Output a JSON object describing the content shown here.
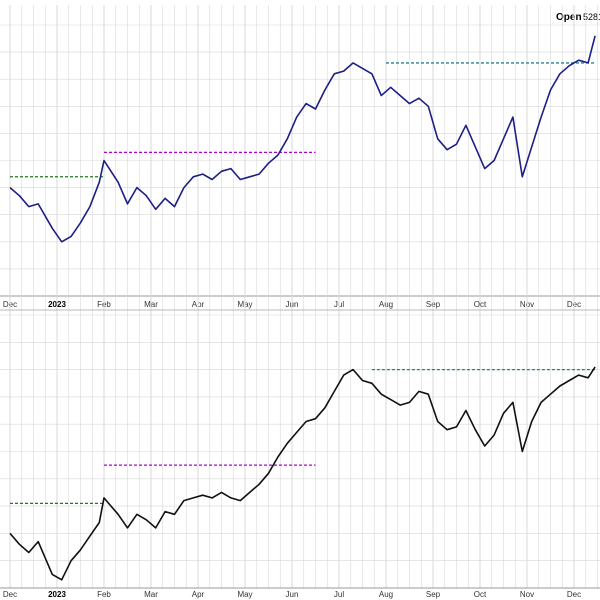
{
  "header": {
    "open_label": "Open",
    "open_value": "5281"
  },
  "colors": {
    "top_series": "#1c1f86",
    "bottom_series": "#111111",
    "grid": "#d8d8d8",
    "divider": "#b8b8b8",
    "ref_green": "#1f7a1f",
    "ref_purple": "#b000d0",
    "ref_teal": "#2a7f8f"
  },
  "chart_data": [
    {
      "type": "line",
      "title": "",
      "x_tick_labels": [
        {
          "label": "Dec",
          "month": 0
        },
        {
          "label": "2023",
          "month": 1,
          "bold": true
        },
        {
          "label": "Feb",
          "month": 2
        },
        {
          "label": "Mar",
          "month": 3
        },
        {
          "label": "Apr",
          "month": 4
        },
        {
          "label": "May",
          "month": 5
        },
        {
          "label": "Jun",
          "month": 6
        },
        {
          "label": "Jul",
          "month": 7
        },
        {
          "label": "Aug",
          "month": 8
        },
        {
          "label": "Sep",
          "month": 9
        },
        {
          "label": "Oct",
          "month": 10
        },
        {
          "label": "Nov",
          "month": 11
        },
        {
          "label": "Dec",
          "month": 12
        }
      ],
      "ylim": [
        0,
        100
      ],
      "grid": true,
      "series": [
        {
          "color_key": "top_series",
          "x": [
            0,
            0.2,
            0.4,
            0.6,
            0.9,
            1.1,
            1.3,
            1.5,
            1.7,
            1.9,
            2.0,
            2.15,
            2.3,
            2.5,
            2.7,
            2.9,
            3.1,
            3.3,
            3.5,
            3.7,
            3.9,
            4.1,
            4.3,
            4.5,
            4.7,
            4.9,
            5.1,
            5.3,
            5.5,
            5.7,
            5.9,
            6.1,
            6.3,
            6.5,
            6.7,
            6.9,
            7.1,
            7.3,
            7.5,
            7.7,
            7.9,
            8.1,
            8.3,
            8.5,
            8.7,
            8.9,
            9.1,
            9.3,
            9.5,
            9.7,
            9.9,
            10.1,
            10.3,
            10.5,
            10.7,
            10.9,
            11.1,
            11.3,
            11.5,
            11.7,
            11.9,
            12.1,
            12.3,
            12.45
          ],
          "y": [
            40,
            37,
            33,
            34,
            25,
            20,
            22,
            27,
            33,
            42,
            50,
            46,
            42,
            34,
            40,
            37,
            32,
            36,
            33,
            40,
            44,
            45,
            43,
            46,
            47,
            43,
            44,
            45,
            49,
            52,
            58,
            66,
            71,
            69,
            76,
            82,
            83,
            86,
            84,
            82,
            74,
            77,
            74,
            71,
            73,
            70,
            58,
            54,
            56,
            63,
            55,
            47,
            50,
            58,
            66,
            44,
            55,
            66,
            76,
            82,
            85,
            87,
            86,
            96
          ]
        }
      ],
      "reference_lines": [
        {
          "y": 44,
          "x_start": 0,
          "x_end": 2.0,
          "color_key": "ref_green"
        },
        {
          "y": 53,
          "x_start": 2.0,
          "x_end": 6.5,
          "color_key": "ref_purple"
        },
        {
          "y": 86,
          "x_start": 8.0,
          "x_end": 12.45,
          "color_key": "ref_teal"
        }
      ]
    },
    {
      "type": "line",
      "title": "",
      "x_tick_labels": [
        {
          "label": "Dec",
          "month": 0
        },
        {
          "label": "2023",
          "month": 1,
          "bold": true
        },
        {
          "label": "Feb",
          "month": 2
        },
        {
          "label": "Mar",
          "month": 3
        },
        {
          "label": "Apr",
          "month": 4
        },
        {
          "label": "May",
          "month": 5
        },
        {
          "label": "Jun",
          "month": 6
        },
        {
          "label": "Jul",
          "month": 7
        },
        {
          "label": "Aug",
          "month": 8
        },
        {
          "label": "Sep",
          "month": 9
        },
        {
          "label": "Oct",
          "month": 10
        },
        {
          "label": "Nov",
          "month": 11
        },
        {
          "label": "Dec",
          "month": 12
        }
      ],
      "ylim": [
        0,
        100
      ],
      "grid": true,
      "series": [
        {
          "color_key": "bottom_series",
          "x": [
            0,
            0.2,
            0.4,
            0.6,
            0.9,
            1.1,
            1.3,
            1.5,
            1.7,
            1.9,
            2.0,
            2.15,
            2.3,
            2.5,
            2.7,
            2.9,
            3.1,
            3.3,
            3.5,
            3.7,
            3.9,
            4.1,
            4.3,
            4.5,
            4.7,
            4.9,
            5.1,
            5.3,
            5.5,
            5.7,
            5.9,
            6.1,
            6.3,
            6.5,
            6.7,
            6.9,
            7.1,
            7.3,
            7.5,
            7.7,
            7.9,
            8.1,
            8.3,
            8.5,
            8.7,
            8.9,
            9.1,
            9.3,
            9.5,
            9.7,
            9.9,
            10.1,
            10.3,
            10.5,
            10.7,
            10.9,
            11.1,
            11.3,
            11.5,
            11.7,
            11.9,
            12.1,
            12.3,
            12.45
          ],
          "y": [
            20,
            16,
            13,
            17,
            5,
            3,
            10,
            14,
            19,
            24,
            33,
            30,
            27,
            22,
            27,
            25,
            22,
            28,
            27,
            32,
            33,
            34,
            33,
            35,
            33,
            32,
            35,
            38,
            42,
            48,
            53,
            57,
            61,
            62,
            66,
            72,
            78,
            80,
            76,
            75,
            71,
            69,
            67,
            68,
            72,
            71,
            61,
            58,
            59,
            65,
            58,
            52,
            56,
            64,
            68,
            50,
            61,
            68,
            71,
            74,
            76,
            78,
            77,
            81
          ]
        }
      ],
      "reference_lines": [
        {
          "y": 31,
          "x_start": 0,
          "x_end": 2.0,
          "color_key": "ref_green"
        },
        {
          "y": 45,
          "x_start": 2.0,
          "x_end": 6.5,
          "color_key": "ref_purple"
        },
        {
          "y": 80,
          "x_start": 7.7,
          "x_end": 12.45,
          "color_key": "ref_teal"
        }
      ]
    }
  ]
}
